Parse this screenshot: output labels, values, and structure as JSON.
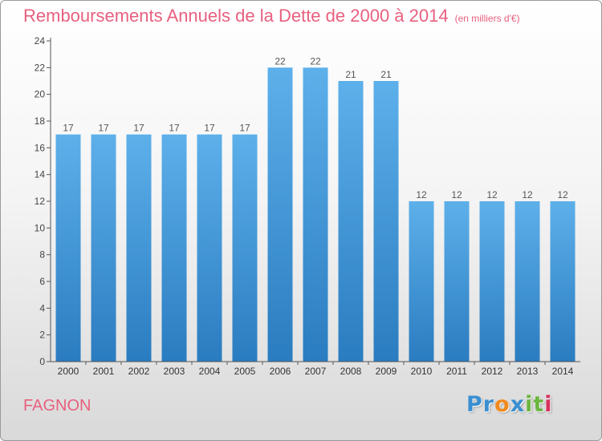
{
  "chart_data": {
    "type": "bar",
    "title": "Remboursements Annuels de la Dette de 2000 à 2014",
    "subtitle": "(en milliers d'€)",
    "categories": [
      "2000",
      "2001",
      "2002",
      "2003",
      "2004",
      "2005",
      "2006",
      "2007",
      "2008",
      "2009",
      "2010",
      "2011",
      "2012",
      "2013",
      "2014"
    ],
    "values": [
      17,
      17,
      17,
      17,
      17,
      17,
      22,
      22,
      21,
      21,
      12,
      12,
      12,
      12,
      12
    ],
    "ylim": [
      0,
      24
    ],
    "yticks": [
      0,
      2,
      4,
      6,
      8,
      10,
      12,
      14,
      16,
      18,
      20,
      22,
      24
    ],
    "grid": false,
    "legend": "none",
    "xlabel": "",
    "ylabel": ""
  },
  "footer": {
    "commune": "FAGNON",
    "logo_letters": [
      "P",
      "r",
      "o",
      "x",
      "i",
      "t",
      "i"
    ]
  },
  "colors": {
    "title": "#e8607f",
    "bar_light": "#5db0ea",
    "bar_dark": "#2a7cc0",
    "axis": "#555555",
    "logo": [
      "#3a8fd1",
      "#3a8fd1",
      "#f08a1d",
      "#3a8fd1",
      "#6ab63f",
      "#6ab63f",
      "#d9315f"
    ]
  }
}
